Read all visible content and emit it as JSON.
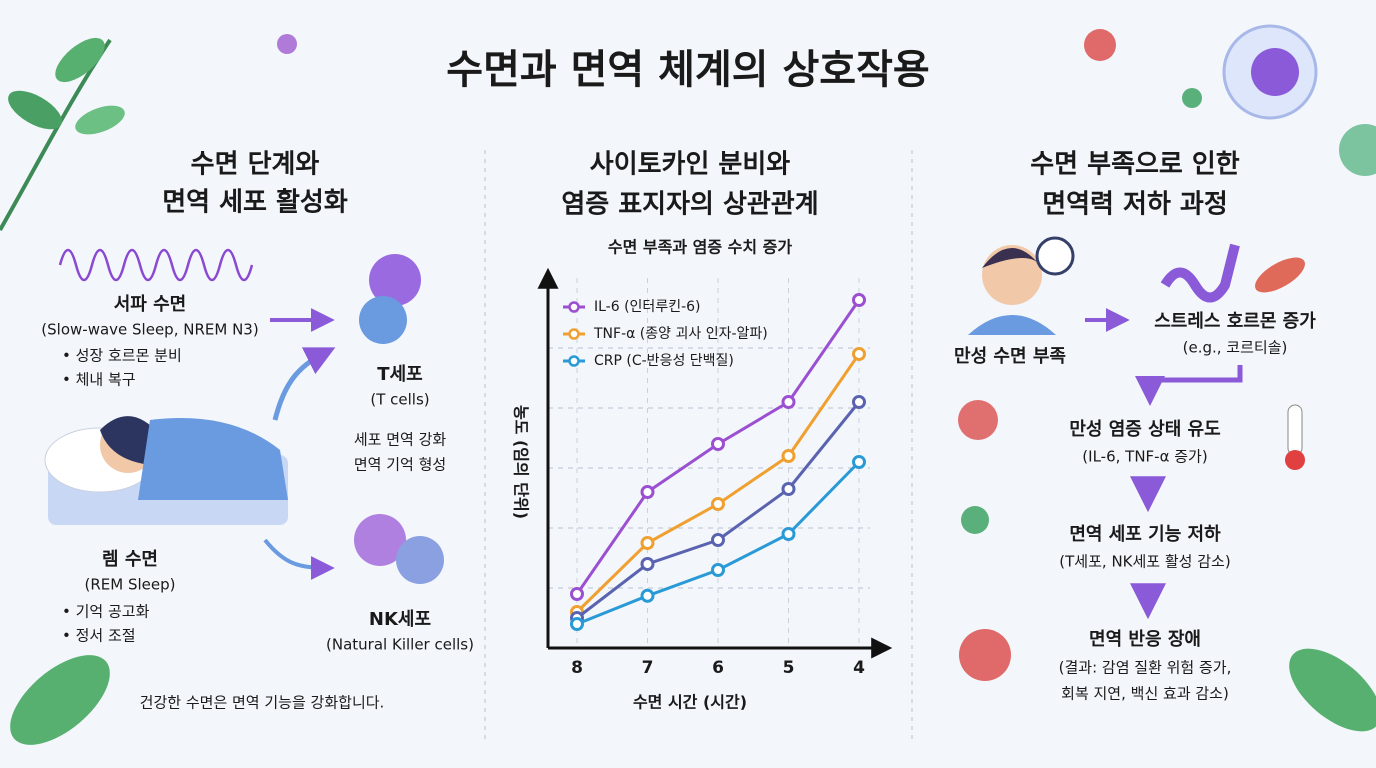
{
  "header": {
    "title": "수면과 면역 체계의 상호작용"
  },
  "left": {
    "heading": [
      "수면 단계와",
      "면역 세포 활성화"
    ],
    "sws": {
      "title": "서파 수면",
      "subtitle": "(Slow-wave Sleep, NREM N3)",
      "bullets": [
        "• 성장 호르몬 분비",
        "• 체내 복구"
      ]
    },
    "rem": {
      "title": "렘 수면",
      "subtitle": "(REM Sleep)",
      "bullets": [
        "• 기억 공고화",
        "• 정서 조절"
      ]
    },
    "tcell": {
      "title": "T세포",
      "subtitle": "(T cells)",
      "notes": [
        "세포 면역 강화",
        "면역 기억 형성"
      ]
    },
    "nkcell": {
      "title": "NK세포",
      "subtitle": "(Natural Killer cells)"
    },
    "footer": "건강한 수면은 면역 기능을 강화합니다."
  },
  "middle": {
    "heading": [
      "사이토카인 분비와",
      "염증 표지자의 상관관계"
    ]
  },
  "chart_data": {
    "type": "line",
    "title": "수면 부족과 염증 수치 증가",
    "x_label": "수면 시간 (시간)",
    "y_label": "농도 (임의 단위)",
    "categories": [
      "8",
      "7",
      "6",
      "5",
      "4"
    ],
    "ylim": [
      0,
      6
    ],
    "yticks": [
      1,
      2,
      3,
      4,
      5
    ],
    "grid": true,
    "legend": "top-left",
    "series": [
      {
        "name": "IL-6 (인터루킨-6)",
        "color": "#9b4fd1",
        "values": [
          0.9,
          2.6,
          3.4,
          4.1,
          5.8
        ]
      },
      {
        "name": "TNF-α (종양 괴사 인자-알파)",
        "color": "#f0a030",
        "values": [
          0.6,
          1.75,
          2.4,
          3.2,
          4.9
        ]
      },
      {
        "color": "#5a63b0",
        "values": [
          0.5,
          1.4,
          1.8,
          2.65,
          4.1
        ]
      },
      {
        "name": "CRP (C-반응성 단백질)",
        "color": "#2a9ad6",
        "values": [
          0.4,
          0.87,
          1.3,
          1.9,
          3.1
        ]
      }
    ]
  },
  "right": {
    "heading": [
      "수면 부족으로 인한",
      "면역력 저하 과정"
    ],
    "start": "만성 수면 부족",
    "steps": [
      {
        "title": "스트레스 호르몬 증가",
        "detail": [
          "(e.g., 코르티솔)"
        ]
      },
      {
        "title": "만성 염증 상태 유도",
        "detail": [
          "(IL-6, TNF-α 증가)"
        ]
      },
      {
        "title": "면역 세포 기능 저하",
        "detail": [
          "(T세포, NK세포 활성 감소)"
        ]
      },
      {
        "title": "면역 반응 장애",
        "detail": [
          "(결과: 감염 질환 위험 증가,",
          "회복 지연, 백신 효과 감소)"
        ]
      }
    ]
  }
}
